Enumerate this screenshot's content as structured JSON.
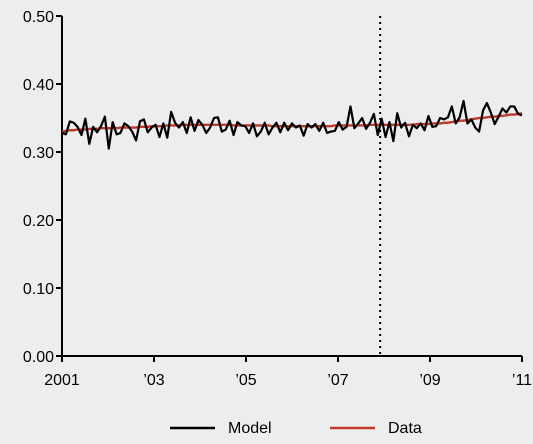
{
  "chart_data": {
    "type": "line",
    "y_axis": {
      "min": 0,
      "max": 0.5,
      "ticks": [
        0.0,
        0.1,
        0.2,
        0.3,
        0.4,
        0.5
      ],
      "tick_labels": [
        "0.00",
        "0.10",
        "0.20",
        "0.30",
        "0.40",
        "0.50"
      ]
    },
    "x_axis": {
      "start": "2001-01",
      "end": "2011-01",
      "ticks": [
        "2001-01",
        "2003-01",
        "2005-01",
        "2007-01",
        "2009-01",
        "2011-01"
      ],
      "tick_labels": [
        "2001",
        "’03",
        "’05",
        "’07",
        "’09",
        "’11"
      ]
    },
    "vertical_marker": {
      "date": "2007-12",
      "style": "dotted"
    },
    "grid": false,
    "legend": {
      "position": "bottom"
    },
    "series": [
      {
        "name": "Model",
        "color": "#000000",
        "values": [
          0.328,
          0.326,
          0.345,
          0.343,
          0.337,
          0.325,
          0.349,
          0.312,
          0.337,
          0.329,
          0.338,
          0.352,
          0.305,
          0.344,
          0.326,
          0.328,
          0.342,
          0.338,
          0.33,
          0.317,
          0.345,
          0.348,
          0.329,
          0.336,
          0.34,
          0.322,
          0.342,
          0.321,
          0.359,
          0.343,
          0.336,
          0.344,
          0.328,
          0.351,
          0.331,
          0.347,
          0.34,
          0.328,
          0.336,
          0.35,
          0.351,
          0.33,
          0.333,
          0.346,
          0.325,
          0.344,
          0.339,
          0.338,
          0.328,
          0.342,
          0.323,
          0.33,
          0.343,
          0.326,
          0.336,
          0.343,
          0.329,
          0.343,
          0.332,
          0.342,
          0.336,
          0.339,
          0.324,
          0.341,
          0.336,
          0.341,
          0.331,
          0.343,
          0.328,
          0.33,
          0.331,
          0.344,
          0.333,
          0.337,
          0.367,
          0.335,
          0.342,
          0.35,
          0.334,
          0.343,
          0.356,
          0.325,
          0.349,
          0.322,
          0.344,
          0.316,
          0.357,
          0.336,
          0.343,
          0.323,
          0.34,
          0.335,
          0.342,
          0.332,
          0.353,
          0.337,
          0.338,
          0.35,
          0.348,
          0.351,
          0.367,
          0.342,
          0.351,
          0.375,
          0.342,
          0.348,
          0.336,
          0.33,
          0.361,
          0.372,
          0.358,
          0.341,
          0.352,
          0.364,
          0.358,
          0.367,
          0.367,
          0.356,
          0.354
        ]
      },
      {
        "name": "Data",
        "color": "#c0392b",
        "values": [
          0.33,
          0.331,
          0.332,
          0.332,
          0.333,
          0.333,
          0.333,
          0.334,
          0.334,
          0.334,
          0.335,
          0.335,
          0.335,
          0.335,
          0.335,
          0.336,
          0.336,
          0.336,
          0.336,
          0.336,
          0.337,
          0.337,
          0.337,
          0.338,
          0.338,
          0.338,
          0.338,
          0.339,
          0.339,
          0.339,
          0.339,
          0.34,
          0.34,
          0.34,
          0.34,
          0.34,
          0.34,
          0.34,
          0.34,
          0.34,
          0.34,
          0.34,
          0.34,
          0.34,
          0.339,
          0.339,
          0.339,
          0.339,
          0.339,
          0.339,
          0.339,
          0.339,
          0.339,
          0.339,
          0.338,
          0.338,
          0.338,
          0.338,
          0.338,
          0.338,
          0.338,
          0.338,
          0.338,
          0.338,
          0.338,
          0.338,
          0.338,
          0.338,
          0.338,
          0.338,
          0.339,
          0.339,
          0.339,
          0.339,
          0.339,
          0.339,
          0.339,
          0.339,
          0.339,
          0.34,
          0.34,
          0.34,
          0.34,
          0.34,
          0.34,
          0.34,
          0.34,
          0.34,
          0.34,
          0.34,
          0.34,
          0.341,
          0.341,
          0.341,
          0.341,
          0.342,
          0.342,
          0.342,
          0.343,
          0.343,
          0.344,
          0.345,
          0.346,
          0.346,
          0.347,
          0.348,
          0.349,
          0.35,
          0.35,
          0.351,
          0.352,
          0.352,
          0.353,
          0.353,
          0.354,
          0.355,
          0.355,
          0.356,
          0.357
        ]
      }
    ]
  }
}
